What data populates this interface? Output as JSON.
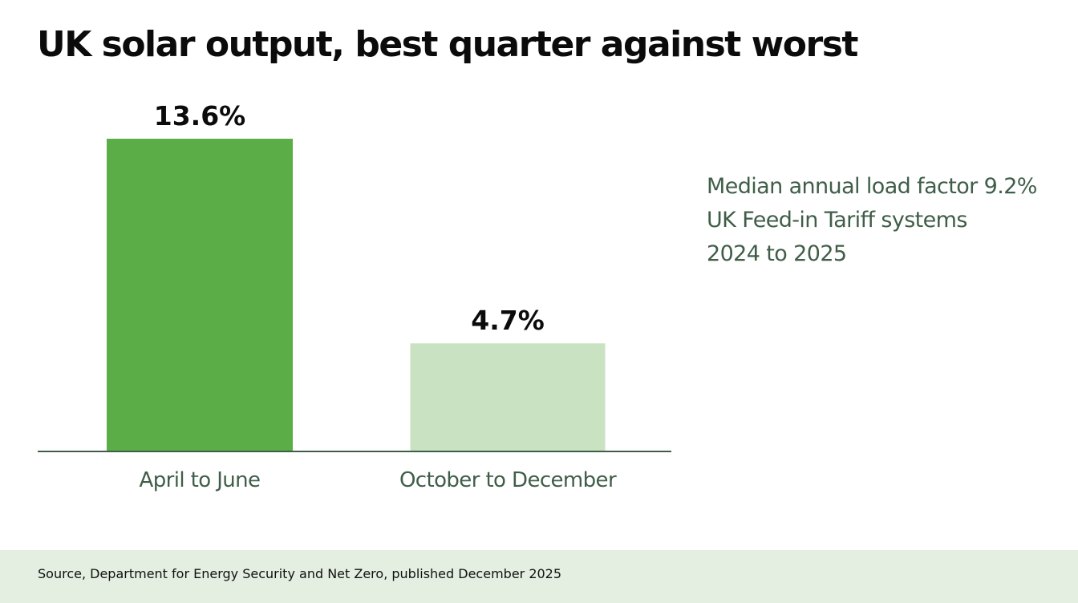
{
  "title": "UK solar output, best quarter against worst",
  "colors": {
    "bar_primary": "#5aad47",
    "bar_secondary": "#c9e2c2",
    "baseline": "#3f5e48",
    "category_label": "#3f5e48",
    "value_label": "#0b0b0b",
    "note_text": "#3f5e48",
    "source_band": "#e4eee1"
  },
  "notes": [
    "Median annual load factor 9.2%",
    "UK Feed-in Tariff systems",
    "2024 to 2025"
  ],
  "source": "Source, Department for Energy Security and Net Zero, published December 2025",
  "chart_data": {
    "type": "bar",
    "title": "UK solar output, best quarter against worst",
    "categories": [
      "April to June",
      "October to December"
    ],
    "values": [
      13.6,
      4.7
    ],
    "value_labels": [
      "13.6%",
      "4.7%"
    ],
    "bar_colors": [
      "#5aad47",
      "#c9e2c2"
    ],
    "ylim": [
      0,
      13.6
    ],
    "unit": "%",
    "grid": false,
    "xlabel": "",
    "ylabel": ""
  }
}
